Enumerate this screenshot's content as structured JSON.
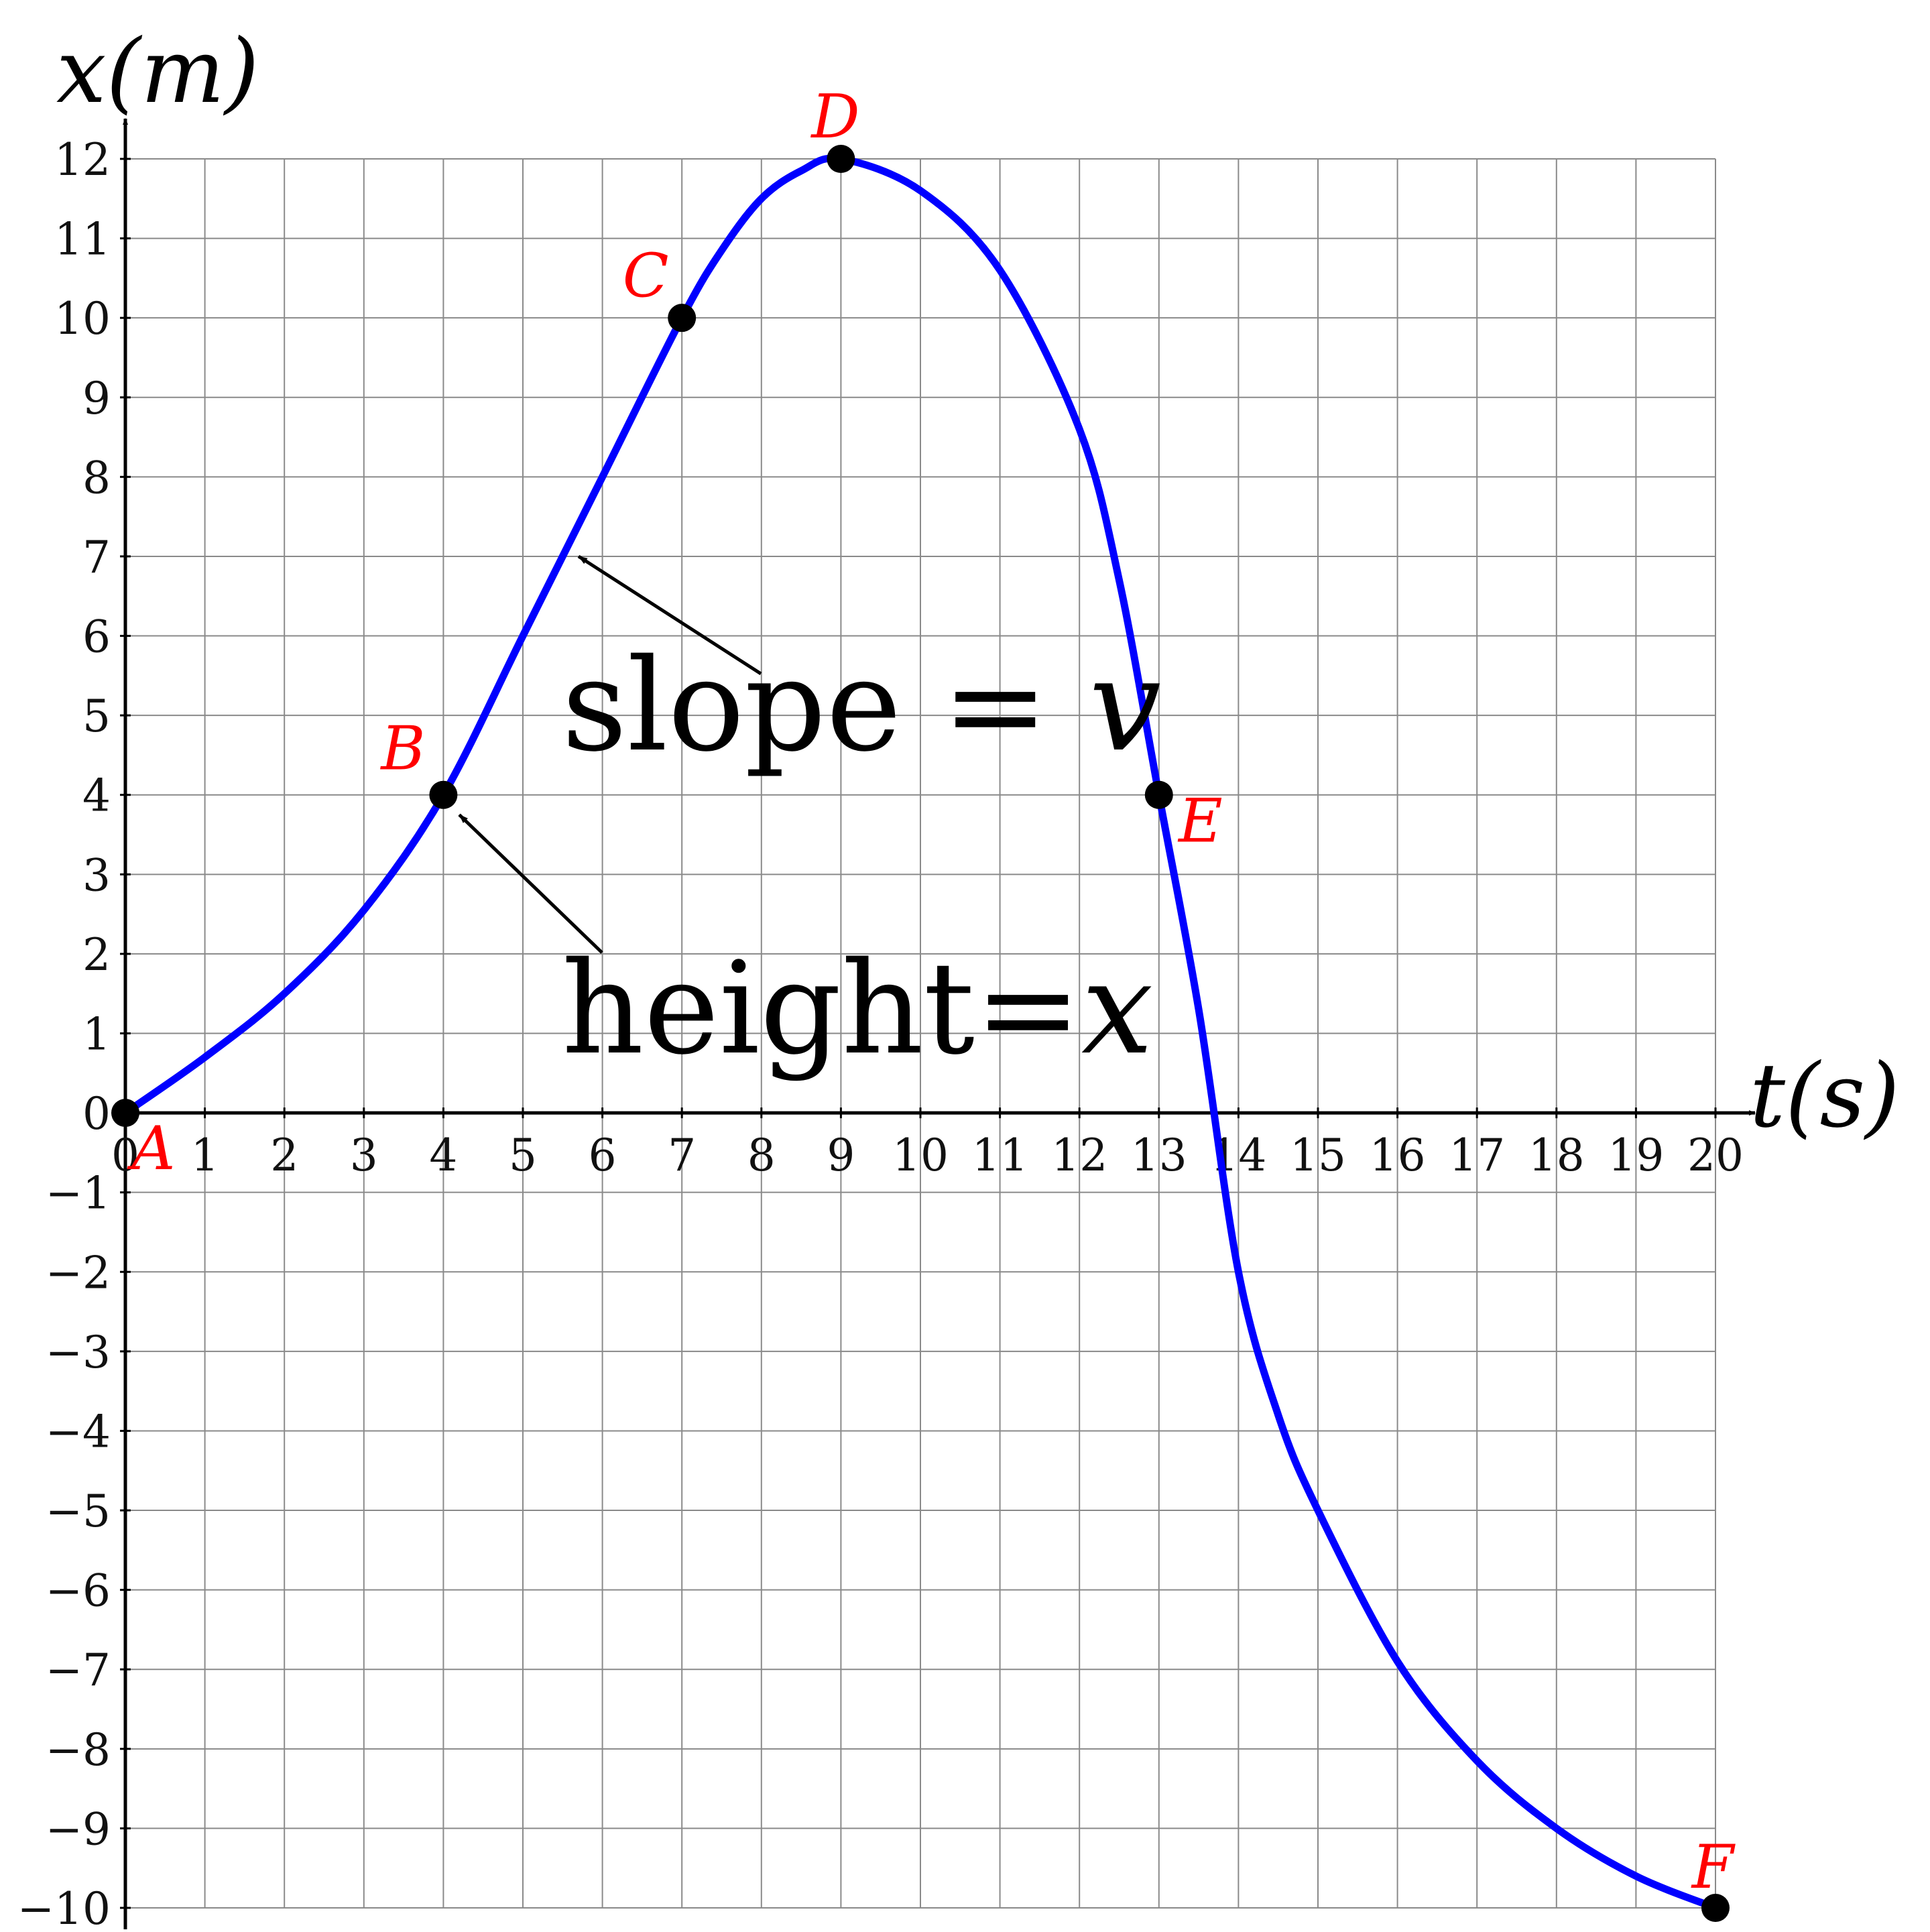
{
  "chart_data": {
    "type": "line",
    "xlabel": "t(s)",
    "ylabel": "x(m)",
    "xlim": [
      0,
      20
    ],
    "ylim": [
      -10,
      12
    ],
    "grid": true,
    "x_ticks": [
      0,
      1,
      2,
      3,
      4,
      5,
      6,
      7,
      8,
      9,
      10,
      11,
      12,
      13,
      14,
      15,
      16,
      17,
      18,
      19,
      20
    ],
    "y_ticks": [
      12,
      11,
      10,
      9,
      8,
      7,
      6,
      5,
      4,
      3,
      2,
      1,
      0,
      -1,
      -2,
      -3,
      -4,
      -5,
      -6,
      -7,
      -8,
      -9,
      -10
    ],
    "curve": {
      "color": "#0000ff",
      "x": [
        0,
        1,
        2,
        3,
        4,
        5,
        6,
        7,
        7.5,
        8,
        8.5,
        9,
        10,
        11,
        12,
        12.5,
        13,
        13.5,
        14,
        14.5,
        15,
        16,
        17,
        18,
        19,
        20
      ],
      "y": [
        0,
        0.7,
        1.5,
        2.55,
        4,
        6,
        8,
        10,
        10.85,
        11.5,
        11.85,
        12,
        11.6,
        10.6,
        8.6,
        6.7,
        4,
        1.3,
        -2,
        -3.8,
        -5,
        -6.9,
        -8.15,
        -9,
        -9.6,
        -10
      ]
    },
    "points": [
      {
        "label": "A",
        "x": 0,
        "y": 0
      },
      {
        "label": "B",
        "x": 4,
        "y": 4
      },
      {
        "label": "C",
        "x": 7,
        "y": 10
      },
      {
        "label": "D",
        "x": 9,
        "y": 12
      },
      {
        "label": "E",
        "x": 13,
        "y": 4
      },
      {
        "label": "F",
        "x": 20,
        "y": -10
      }
    ],
    "annotations": [
      {
        "text_main": "slope = ",
        "text_var": "v",
        "arrow_to": {
          "x": 5.7,
          "y": 7.0
        }
      },
      {
        "text_main": "height=",
        "text_var": "x",
        "arrow_to": {
          "x": 4.2,
          "y": 3.75
        }
      }
    ]
  }
}
